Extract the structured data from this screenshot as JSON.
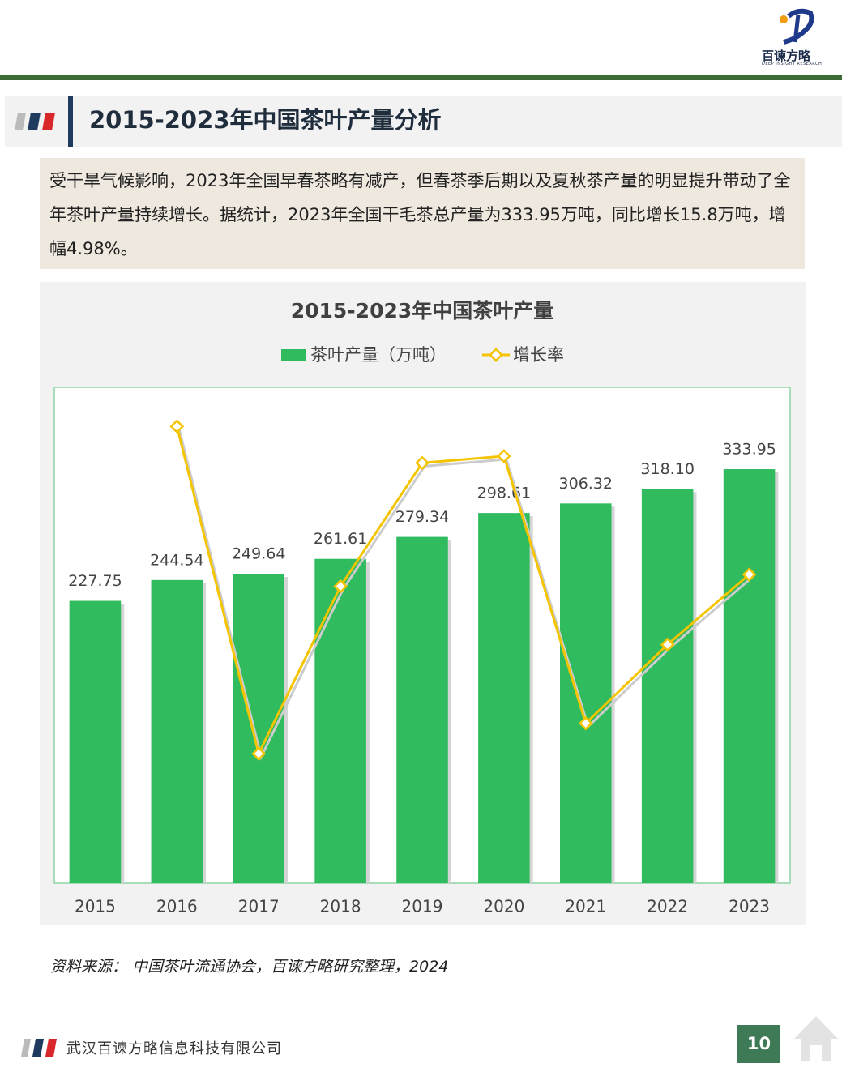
{
  "header": {
    "logo_name": "百谏方略",
    "logo_subtitle": "DEEP INSIGHT RESEARCH"
  },
  "section_title": "2015-2023年中国茶叶产量分析",
  "summary": "受干旱气候影响，2023年全国早春茶略有减产，但春茶季后期以及夏秋茶产量的明显提升带动了全年茶叶产量持续增长。据统计，2023年全国干毛茶总产量为333.95万吨，同比增长15.8万吨，增幅4.98%。",
  "chart_data": {
    "type": "bar-line",
    "title": "2015-2023年中国茶叶产量",
    "categories": [
      "2015",
      "2016",
      "2017",
      "2018",
      "2019",
      "2020",
      "2021",
      "2022",
      "2023"
    ],
    "series": [
      {
        "name": "茶叶产量（万吨）",
        "type": "bar",
        "color": "#2fbb5e",
        "values": [
          227.75,
          244.54,
          249.64,
          261.61,
          279.34,
          298.61,
          306.32,
          318.1,
          333.95
        ],
        "value_labels": [
          "227.75",
          "244.54",
          "249.64",
          "261.61",
          "279.34",
          "298.61",
          "306.32",
          "318.10",
          "333.95"
        ]
      },
      {
        "name": "增长率",
        "type": "line",
        "axis": "y2",
        "color": "#f5c400",
        "values": [
          null,
          7.37,
          2.09,
          4.79,
          6.78,
          6.89,
          2.58,
          3.85,
          4.98
        ]
      }
    ],
    "ylim": [
      0,
      400
    ],
    "y2lim": [
      0,
      8
    ],
    "legend": "top"
  },
  "source": "资料来源：  中国茶叶流通协会，百谏方略研究整理，2024",
  "footer": {
    "company": "武汉百谏方略信息科技有限公司",
    "page": "10"
  }
}
